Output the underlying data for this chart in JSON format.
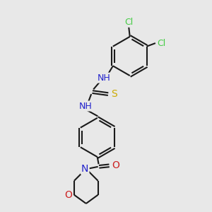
{
  "bg_color": "#e8e8e8",
  "bond_color": "#1a1a1a",
  "bond_width": 1.5,
  "atom_colors": {
    "N": "#2222cc",
    "O": "#cc2222",
    "S": "#ccaa00",
    "Cl": "#44cc44"
  },
  "font_size": 9,
  "fig_size": [
    3.0,
    3.0
  ],
  "dpi": 100,
  "xlim": [
    0.5,
    8.5
  ],
  "ylim": [
    0.2,
    9.8
  ]
}
